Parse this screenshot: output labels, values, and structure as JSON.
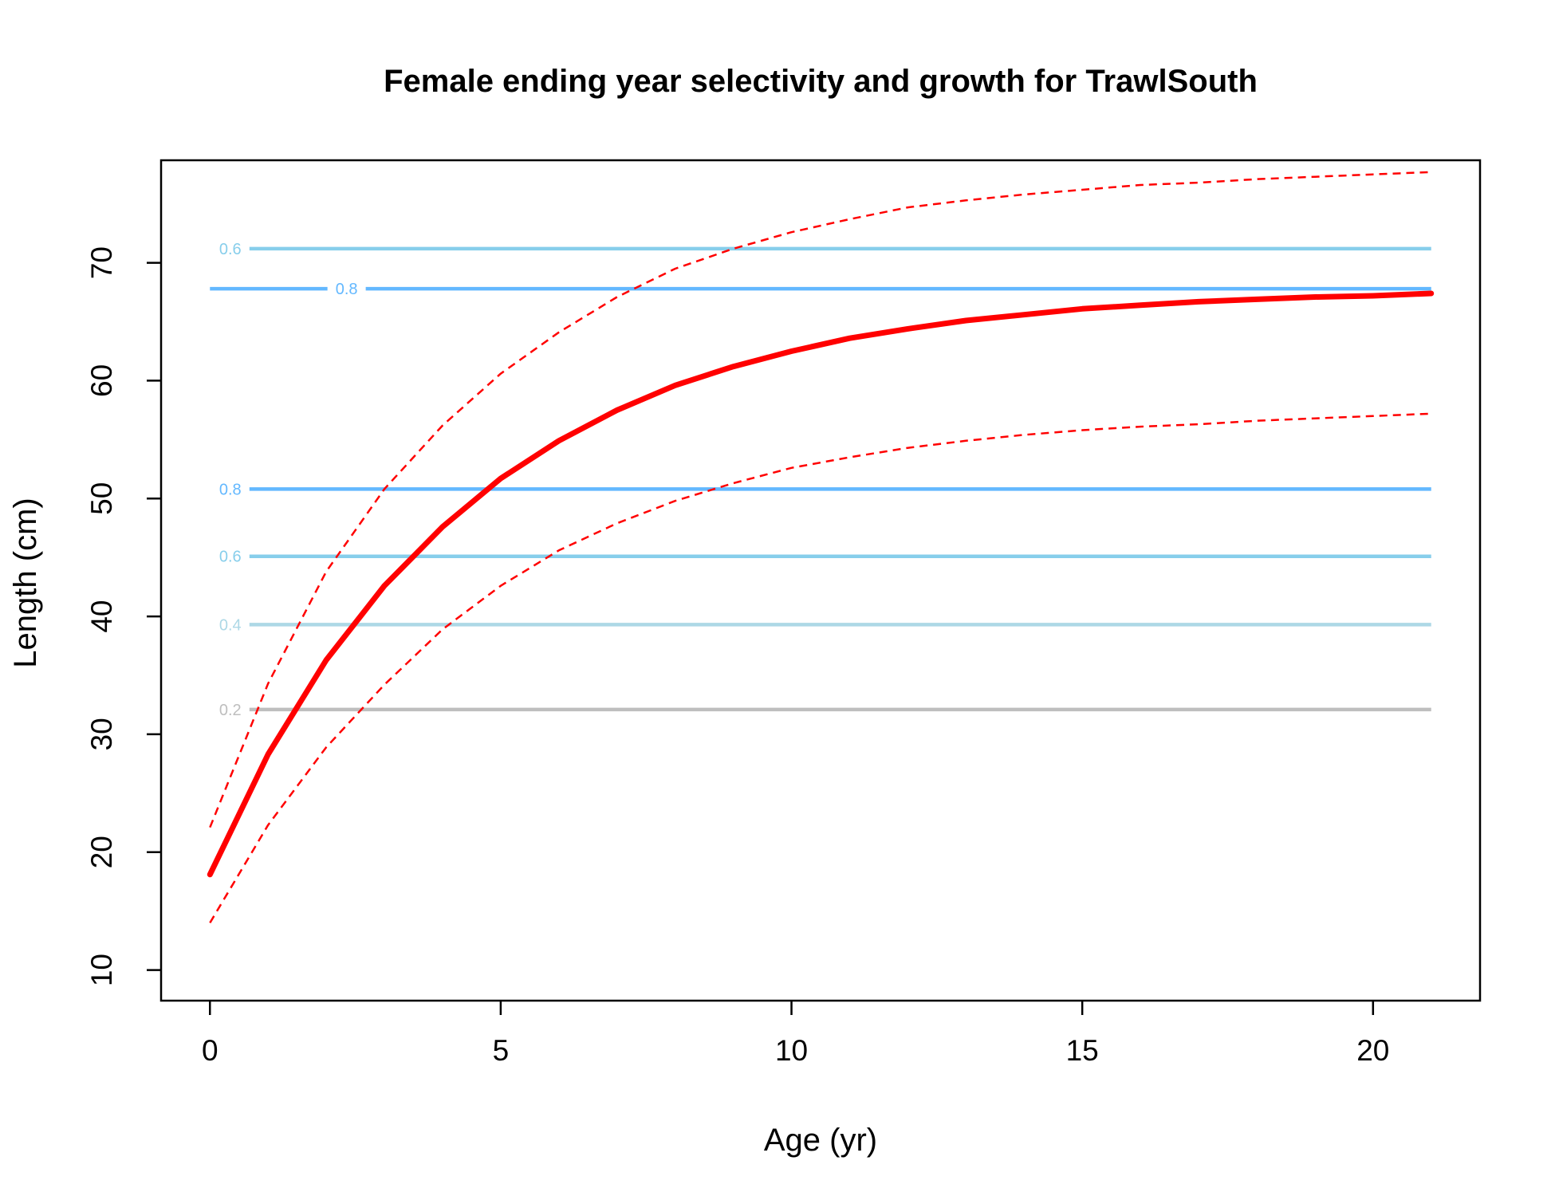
{
  "chart_data": {
    "type": "line",
    "title": "Female ending year selectivity and growth for TrawlSouth",
    "xlabel": "Age (yr)",
    "ylabel": "Length (cm)",
    "xlim": [
      0,
      21
    ],
    "ylim": [
      10,
      78
    ],
    "xticks": [
      0,
      5,
      10,
      15,
      20
    ],
    "yticks": [
      10,
      20,
      30,
      40,
      50,
      60,
      70
    ],
    "grid": false,
    "legend": "none",
    "series": [
      {
        "role": "mean-growth",
        "color": "#ff0000",
        "style": "solid",
        "x": [
          0,
          1,
          2,
          3,
          4,
          5,
          6,
          7,
          8,
          9,
          10,
          11,
          12,
          13,
          14,
          15,
          16,
          17,
          18,
          19,
          20,
          21
        ],
        "y": [
          18.1,
          28.3,
          36.3,
          42.6,
          47.6,
          51.7,
          54.9,
          57.5,
          59.6,
          61.2,
          62.5,
          63.6,
          64.4,
          65.1,
          65.6,
          66.1,
          66.4,
          66.7,
          66.9,
          67.1,
          67.2,
          67.4
        ]
      },
      {
        "role": "upper-interval",
        "color": "#ff0000",
        "style": "dashed",
        "x": [
          0,
          1,
          2,
          3,
          4,
          5,
          6,
          7,
          8,
          9,
          10,
          11,
          12,
          13,
          14,
          15,
          16,
          17,
          18,
          19,
          20,
          21
        ],
        "y": [
          22.1,
          34.3,
          43.8,
          50.8,
          56.2,
          60.6,
          64.1,
          67.1,
          69.5,
          71.2,
          72.6,
          73.7,
          74.7,
          75.3,
          75.8,
          76.2,
          76.6,
          76.8,
          77.1,
          77.3,
          77.5,
          77.7
        ]
      },
      {
        "role": "lower-interval",
        "color": "#ff0000",
        "style": "dashed",
        "x": [
          0,
          1,
          2,
          3,
          4,
          5,
          6,
          7,
          8,
          9,
          10,
          11,
          12,
          13,
          14,
          15,
          16,
          17,
          18,
          19,
          20,
          21
        ],
        "y": [
          14.0,
          22.3,
          28.9,
          34.2,
          38.9,
          42.6,
          45.6,
          47.9,
          49.8,
          51.3,
          52.6,
          53.5,
          54.3,
          54.9,
          55.4,
          55.8,
          56.1,
          56.3,
          56.6,
          56.8,
          57.0,
          57.2
        ]
      }
    ],
    "contours": [
      {
        "level": "0.2",
        "y": 32.1,
        "color": "#bebebe",
        "label_x": 0.35
      },
      {
        "level": "0.4",
        "y": 39.3,
        "color": "#add8e6",
        "label_x": 0.35
      },
      {
        "level": "0.6",
        "y": 45.1,
        "color": "#87ceeb",
        "label_x": 0.35
      },
      {
        "level": "0.8",
        "y": 50.8,
        "color": "#63b8ff",
        "label_x": 0.35
      },
      {
        "level": "0.8",
        "y": 67.8,
        "color": "#63b8ff",
        "label_x": 2.35
      },
      {
        "level": "0.6",
        "y": 71.2,
        "color": "#87ceeb",
        "label_x": 0.35
      }
    ]
  }
}
